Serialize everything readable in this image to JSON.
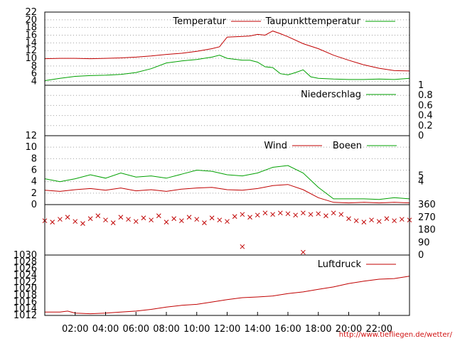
{
  "source_link": "http://www.tiefliegen.de/wetter/",
  "colors": {
    "red": "#c00000",
    "green": "#00a000",
    "grid": "#a0a0a0"
  },
  "chart_data": [
    {
      "id": "temperature",
      "type": "line",
      "y_ticks": [
        4,
        6,
        8,
        10,
        12,
        14,
        16,
        18,
        20,
        22
      ],
      "ylim": [
        3,
        22
      ],
      "grid": true,
      "legend_position": "top-right",
      "series": [
        {
          "name": "Temperatur",
          "color": "#c00000",
          "x": [
            0,
            1,
            2,
            3,
            4,
            5,
            6,
            7,
            8,
            9,
            10,
            11,
            11.5,
            12,
            13,
            13.5,
            14,
            14.5,
            15,
            15.5,
            16,
            17,
            18,
            19,
            20,
            21,
            22,
            23,
            24
          ],
          "values": [
            9.9,
            10.0,
            10.0,
            9.9,
            10.0,
            10.1,
            10.3,
            10.6,
            11.0,
            11.3,
            11.8,
            12.5,
            13.0,
            15.5,
            15.7,
            15.8,
            16.2,
            16.0,
            17.1,
            16.4,
            15.6,
            13.8,
            12.5,
            10.8,
            9.5,
            8.3,
            7.4,
            6.8,
            6.7
          ]
        },
        {
          "name": "Taupunkttemperatur",
          "color": "#00a000",
          "x": [
            0,
            1,
            2,
            3,
            4,
            5,
            6,
            7,
            8,
            9,
            10,
            11,
            11.5,
            12,
            13,
            13.5,
            14,
            14.5,
            15,
            15.5,
            16,
            16.5,
            17,
            17.5,
            18,
            19,
            20,
            21,
            22,
            23,
            24
          ],
          "values": [
            4.2,
            4.8,
            5.3,
            5.5,
            5.6,
            5.8,
            6.3,
            7.3,
            8.8,
            9.3,
            9.7,
            10.3,
            10.8,
            10.0,
            9.5,
            9.5,
            9.0,
            7.8,
            7.6,
            6.0,
            5.7,
            6.3,
            7.0,
            5.2,
            4.8,
            4.6,
            4.5,
            4.5,
            4.6,
            4.5,
            4.8
          ]
        }
      ]
    },
    {
      "id": "precipitation",
      "type": "line",
      "y_ticks": [
        "0",
        "0.2",
        "0.4",
        "0.6",
        "0.8",
        "1"
      ],
      "ylim": [
        0,
        1
      ],
      "grid": true,
      "legend_position": "top-right",
      "series": [
        {
          "name": "Niederschlag",
          "color": "#00a000",
          "x": [
            0,
            24
          ],
          "values": [
            0,
            0
          ]
        }
      ]
    },
    {
      "id": "wind",
      "type": "line",
      "y_ticks": [
        0,
        2,
        4,
        6,
        8,
        10,
        12
      ],
      "right_ticks": [
        "4",
        "5"
      ],
      "ylim": [
        0,
        12
      ],
      "grid": true,
      "legend_position": "top-right",
      "series": [
        {
          "name": "Wind",
          "color": "#c00000",
          "x": [
            0,
            1,
            2,
            3,
            4,
            5,
            6,
            7,
            8,
            9,
            10,
            11,
            12,
            13,
            14,
            15,
            16,
            17,
            18,
            19,
            20,
            21,
            22,
            23,
            24
          ],
          "values": [
            2.5,
            2.3,
            2.6,
            2.8,
            2.5,
            2.9,
            2.4,
            2.6,
            2.3,
            2.7,
            2.9,
            3.0,
            2.6,
            2.5,
            2.8,
            3.3,
            3.5,
            2.6,
            1.2,
            0.4,
            0.3,
            0.4,
            0.3,
            0.4,
            0.3
          ]
        },
        {
          "name": "Boeen",
          "color": "#00a000",
          "x": [
            0,
            1,
            2,
            3,
            4,
            5,
            6,
            7,
            8,
            9,
            10,
            11,
            12,
            13,
            14,
            15,
            16,
            17,
            18,
            19,
            20,
            21,
            22,
            23,
            24
          ],
          "values": [
            4.5,
            4.0,
            4.5,
            5.2,
            4.6,
            5.5,
            4.8,
            5.0,
            4.6,
            5.3,
            6.0,
            5.8,
            5.2,
            5.0,
            5.5,
            6.5,
            6.8,
            5.5,
            3.0,
            1.0,
            1.0,
            1.0,
            0.9,
            1.2,
            1.0
          ]
        }
      ]
    },
    {
      "id": "wind_direction",
      "type": "scatter",
      "y_ticks": [
        "0",
        "90",
        "180",
        "270",
        "360"
      ],
      "ylim": [
        0,
        360
      ],
      "grid": false,
      "series": [
        {
          "name": "",
          "color": "#c00000",
          "x": [
            0,
            0.5,
            1,
            1.5,
            2,
            2.5,
            3,
            3.5,
            4,
            4.5,
            5,
            5.5,
            6,
            6.5,
            7,
            7.5,
            8,
            8.5,
            9,
            9.5,
            10,
            10.5,
            11,
            11.5,
            12,
            12.5,
            13,
            13,
            13.5,
            14,
            14.5,
            15,
            15.5,
            16,
            16.5,
            17,
            17,
            17.5,
            18,
            18.5,
            19,
            19.5,
            20,
            20.5,
            21,
            21.5,
            22,
            22.5,
            23,
            23.5,
            24
          ],
          "values": [
            245,
            235,
            255,
            270,
            240,
            225,
            260,
            280,
            250,
            230,
            270,
            255,
            240,
            265,
            250,
            280,
            235,
            260,
            245,
            270,
            255,
            230,
            265,
            250,
            240,
            275,
            60,
            290,
            270,
            285,
            300,
            290,
            300,
            295,
            285,
            20,
            300,
            290,
            295,
            280,
            300,
            290,
            260,
            245,
            235,
            250,
            240,
            260,
            245,
            255,
            250
          ]
        }
      ]
    },
    {
      "id": "pressure",
      "type": "line",
      "y_ticks": [
        1012,
        1014,
        1016,
        1018,
        1020,
        1022,
        1024,
        1026,
        1028,
        1030
      ],
      "ylim": [
        1012,
        1030
      ],
      "grid": false,
      "legend_position": "top-right",
      "series": [
        {
          "name": "Luftdruck",
          "color": "#c00000",
          "x": [
            0,
            1,
            1.5,
            2,
            3,
            4,
            5,
            6,
            7,
            8,
            9,
            10,
            11,
            12,
            13,
            14,
            15,
            16,
            17,
            18,
            19,
            20,
            21,
            22,
            23,
            24
          ],
          "values": [
            1013.0,
            1013.0,
            1013.3,
            1012.7,
            1012.5,
            1012.7,
            1013.0,
            1013.3,
            1013.8,
            1014.5,
            1015.0,
            1015.3,
            1016.0,
            1016.7,
            1017.3,
            1017.5,
            1017.8,
            1018.5,
            1019.0,
            1019.8,
            1020.5,
            1021.5,
            1022.2,
            1022.8,
            1023.0,
            1023.7
          ]
        }
      ]
    }
  ],
  "x_axis": {
    "ticks": [
      "02:00",
      "04:00",
      "06:00",
      "08:00",
      "10:00",
      "12:00",
      "14:00",
      "16:00",
      "18:00",
      "20:00",
      "22:00"
    ],
    "tick_hours": [
      2,
      4,
      6,
      8,
      10,
      12,
      14,
      16,
      18,
      20,
      22
    ],
    "range_hours": [
      0,
      24
    ]
  }
}
